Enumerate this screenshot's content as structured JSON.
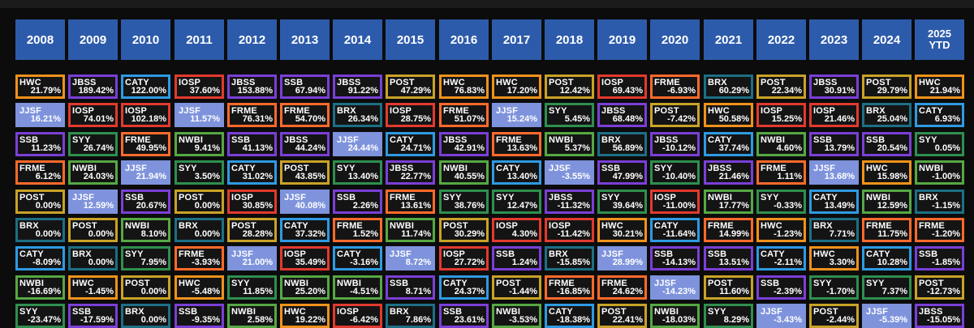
{
  "years": [
    "2008",
    "2009",
    "2010",
    "2011",
    "2012",
    "2013",
    "2014",
    "2015",
    "2016",
    "2017",
    "2018",
    "2019",
    "2020",
    "2021",
    "2022",
    "2023",
    "2024",
    "2025\nYTD"
  ],
  "colors": {
    "HWC": "#f0921b",
    "JBSS": "#7a3fd6",
    "CATY": "#2e9ae2",
    "IOSP": "#e23a2e",
    "SSB": "#7a3fd6",
    "POST": "#c9a227",
    "FRME": "#ff6a2b",
    "BRX": "#1d6f85",
    "SYY": "#2f8f4e",
    "NWBI": "#56a843",
    "JJSF": "#7e93dc"
  },
  "rows": [
    [
      [
        "HWC",
        "21.79%"
      ],
      [
        "JBSS",
        "189.42%"
      ],
      [
        "CATY",
        "122.00%"
      ],
      [
        "IOSP",
        "37.60%"
      ],
      [
        "JBSS",
        "153.88%"
      ],
      [
        "SSB",
        "67.94%"
      ],
      [
        "JBSS",
        "91.22%"
      ],
      [
        "POST",
        "47.29%"
      ],
      [
        "HWC",
        "76.83%"
      ],
      [
        "HWC",
        "17.20%"
      ],
      [
        "POST",
        "12.42%"
      ],
      [
        "IOSP",
        "69.43%"
      ],
      [
        "FRME",
        "-6.93%"
      ],
      [
        "BRX",
        "60.29%"
      ],
      [
        "POST",
        "22.34%"
      ],
      [
        "JBSS",
        "30.91%"
      ],
      [
        "POST",
        "29.79%"
      ],
      [
        "HWC",
        "21.94%"
      ]
    ],
    [
      [
        "JJSF",
        "16.21%"
      ],
      [
        "IOSP",
        "74.01%"
      ],
      [
        "IOSP",
        "102.18%"
      ],
      [
        "JJSF",
        "11.57%"
      ],
      [
        "FRME",
        "76.31%"
      ],
      [
        "FRME",
        "54.70%"
      ],
      [
        "BRX",
        "26.34%"
      ],
      [
        "IOSP",
        "28.75%"
      ],
      [
        "FRME",
        "51.07%"
      ],
      [
        "JJSF",
        "15.24%"
      ],
      [
        "SYY",
        "5.45%"
      ],
      [
        "JBSS",
        "68.48%"
      ],
      [
        "POST",
        "-7.42%"
      ],
      [
        "HWC",
        "50.58%"
      ],
      [
        "IOSP",
        "15.25%"
      ],
      [
        "IOSP",
        "21.46%"
      ],
      [
        "BRX",
        "25.04%"
      ],
      [
        "CATY",
        "6.93%"
      ]
    ],
    [
      [
        "SSB",
        "11.23%"
      ],
      [
        "SYY",
        "26.74%"
      ],
      [
        "FRME",
        "49.95%"
      ],
      [
        "NWBI",
        "9.41%"
      ],
      [
        "SSB",
        "41.13%"
      ],
      [
        "JBSS",
        "44.24%"
      ],
      [
        "JJSF",
        "24.44%"
      ],
      [
        "CATY",
        "24.71%"
      ],
      [
        "JBSS",
        "42.91%"
      ],
      [
        "FRME",
        "13.63%"
      ],
      [
        "NWBI",
        "5.37%"
      ],
      [
        "BRX",
        "56.89%"
      ],
      [
        "JBSS",
        "-10.12%"
      ],
      [
        "CATY",
        "37.74%"
      ],
      [
        "NWBI",
        "4.60%"
      ],
      [
        "SSB",
        "13.79%"
      ],
      [
        "SSB",
        "20.54%"
      ],
      [
        "SYY",
        "0.05%"
      ]
    ],
    [
      [
        "FRME",
        "6.12%"
      ],
      [
        "NWBI",
        "24.03%"
      ],
      [
        "JJSF",
        "21.94%"
      ],
      [
        "SYY",
        "3.50%"
      ],
      [
        "CATY",
        "31.02%"
      ],
      [
        "POST",
        "43.85%"
      ],
      [
        "SYY",
        "13.40%"
      ],
      [
        "JBSS",
        "22.77%"
      ],
      [
        "NWBI",
        "40.55%"
      ],
      [
        "CATY",
        "13.40%"
      ],
      [
        "JJSF",
        "-3.55%"
      ],
      [
        "SSB",
        "47.99%"
      ],
      [
        "SYY",
        "-10.40%"
      ],
      [
        "JBSS",
        "21.46%"
      ],
      [
        "FRME",
        "1.11%"
      ],
      [
        "JJSF",
        "13.68%"
      ],
      [
        "HWC",
        "15.98%"
      ],
      [
        "NWBI",
        "-1.00%"
      ]
    ],
    [
      [
        "POST",
        "0.00%"
      ],
      [
        "JJSF",
        "12.59%"
      ],
      [
        "SSB",
        "20.67%"
      ],
      [
        "POST",
        "0.00%"
      ],
      [
        "IOSP",
        "30.85%"
      ],
      [
        "JJSF",
        "40.08%"
      ],
      [
        "SSB",
        "2.26%"
      ],
      [
        "FRME",
        "13.61%"
      ],
      [
        "SYY",
        "38.76%"
      ],
      [
        "SYY",
        "12.47%"
      ],
      [
        "JBSS",
        "-11.32%"
      ],
      [
        "SYY",
        "39.64%"
      ],
      [
        "IOSP",
        "-11.00%"
      ],
      [
        "NWBI",
        "17.77%"
      ],
      [
        "SYY",
        "-0.33%"
      ],
      [
        "CATY",
        "13.49%"
      ],
      [
        "NWBI",
        "12.59%"
      ],
      [
        "BRX",
        "-1.15%"
      ]
    ],
    [
      [
        "BRX",
        "0.00%"
      ],
      [
        "POST",
        "0.00%"
      ],
      [
        "NWBI",
        "8.10%"
      ],
      [
        "BRX",
        "0.00%"
      ],
      [
        "POST",
        "28.28%"
      ],
      [
        "CATY",
        "37.32%"
      ],
      [
        "FRME",
        "1.52%"
      ],
      [
        "NWBI",
        "11.74%"
      ],
      [
        "POST",
        "30.29%"
      ],
      [
        "IOSP",
        "4.30%"
      ],
      [
        "IOSP",
        "-11.42%"
      ],
      [
        "HWC",
        "30.21%"
      ],
      [
        "CATY",
        "-11.64%"
      ],
      [
        "FRME",
        "14.99%"
      ],
      [
        "HWC",
        "-1.23%"
      ],
      [
        "BRX",
        "7.71%"
      ],
      [
        "FRME",
        "11.75%"
      ],
      [
        "FRME",
        "-1.20%"
      ]
    ],
    [
      [
        "CATY",
        "-8.09%"
      ],
      [
        "BRX",
        "0.00%"
      ],
      [
        "SYY",
        "7.95%"
      ],
      [
        "FRME",
        "-3.93%"
      ],
      [
        "JJSF",
        "21.00%"
      ],
      [
        "IOSP",
        "35.49%"
      ],
      [
        "CATY",
        "-3.16%"
      ],
      [
        "JJSF",
        "8.72%"
      ],
      [
        "IOSP",
        "27.72%"
      ],
      [
        "SSB",
        "1.24%"
      ],
      [
        "BRX",
        "-15.85%"
      ],
      [
        "JJSF",
        "28.99%"
      ],
      [
        "SSB",
        "-14.13%"
      ],
      [
        "SSB",
        "13.51%"
      ],
      [
        "CATY",
        "-2.11%"
      ],
      [
        "HWC",
        "3.30%"
      ],
      [
        "CATY",
        "10.28%"
      ],
      [
        "SSB",
        "-1.85%"
      ]
    ],
    [
      [
        "NWBI",
        "-16.69%"
      ],
      [
        "HWC",
        "-1.45%"
      ],
      [
        "POST",
        "0.00%"
      ],
      [
        "HWC",
        "-5.48%"
      ],
      [
        "SYY",
        "11.85%"
      ],
      [
        "NWBI",
        "25.20%"
      ],
      [
        "NWBI",
        "-4.51%"
      ],
      [
        "SSB",
        "8.71%"
      ],
      [
        "CATY",
        "24.37%"
      ],
      [
        "POST",
        "-1.44%"
      ],
      [
        "FRME",
        "-16.85%"
      ],
      [
        "FRME",
        "24.62%"
      ],
      [
        "JJSF",
        "-14.23%"
      ],
      [
        "POST",
        "11.60%"
      ],
      [
        "SSB",
        "-2.39%"
      ],
      [
        "SYY",
        "-1.70%"
      ],
      [
        "SYY",
        "7.37%"
      ],
      [
        "POST",
        "-12.73%"
      ]
    ],
    [
      [
        "SYY",
        "-23.47%"
      ],
      [
        "SSB",
        "-17.59%"
      ],
      [
        "BRX",
        "0.00%"
      ],
      [
        "SSB",
        "-9.35%"
      ],
      [
        "NWBI",
        "2.58%"
      ],
      [
        "HWC",
        "19.22%"
      ],
      [
        "IOSP",
        "-6.42%"
      ],
      [
        "BRX",
        "7.86%"
      ],
      [
        "SSB",
        "23.61%"
      ],
      [
        "NWBI",
        "-3.53%"
      ],
      [
        "CATY",
        "-18.38%"
      ],
      [
        "POST",
        "22.41%"
      ],
      [
        "NWBI",
        "-18.03%"
      ],
      [
        "SYY",
        "8.29%"
      ],
      [
        "JJSF",
        "-3.43%"
      ],
      [
        "POST",
        "-2.44%"
      ],
      [
        "JJSF",
        "-5.39%"
      ],
      [
        "JBSS",
        "-15.05%"
      ]
    ]
  ]
}
